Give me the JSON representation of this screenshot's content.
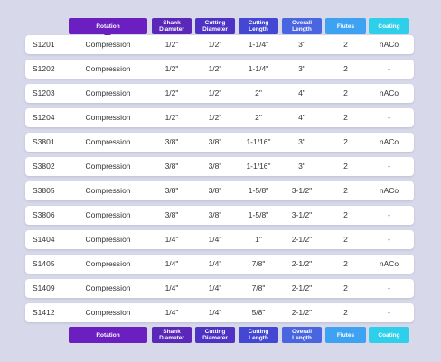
{
  "header": {
    "columns": [
      "Rotation",
      "Shank Diameter",
      "Cutting Diameter",
      "Cutting Length",
      "Overall Length",
      "Flutes",
      "Coating"
    ]
  },
  "table": {
    "rows": [
      [
        "S1201",
        "Compression",
        "1/2\"",
        "1/2\"",
        "1-1/4\"",
        "3\"",
        "2",
        "nACo"
      ],
      [
        "S1202",
        "Compression",
        "1/2\"",
        "1/2\"",
        "1-1/4\"",
        "3\"",
        "2",
        "-"
      ],
      [
        "S1203",
        "Compression",
        "1/2\"",
        "1/2\"",
        "2\"",
        "4\"",
        "2",
        "nACo"
      ],
      [
        "S1204",
        "Compression",
        "1/2\"",
        "1/2\"",
        "2\"",
        "4\"",
        "2",
        "-"
      ],
      [
        "S3801",
        "Compression",
        "3/8\"",
        "3/8\"",
        "1-1/16\"",
        "3\"",
        "2",
        "nACo"
      ],
      [
        "S3802",
        "Compression",
        "3/8\"",
        "3/8\"",
        "1-1/16\"",
        "3\"",
        "2",
        "-"
      ],
      [
        "S3805",
        "Compression",
        "3/8\"",
        "3/8\"",
        "1-5/8\"",
        "3-1/2\"",
        "2",
        "nACo"
      ],
      [
        "S3806",
        "Compression",
        "3/8\"",
        "3/8\"",
        "1-5/8\"",
        "3-1/2\"",
        "2",
        "-"
      ],
      [
        "S1404",
        "Compression",
        "1/4\"",
        "1/4\"",
        "1\"",
        "2-1/2\"",
        "2",
        "-"
      ],
      [
        "S1405",
        "Compression",
        "1/4\"",
        "1/4\"",
        "7/8\"",
        "2-1/2\"",
        "2",
        "nACo"
      ],
      [
        "S1409",
        "Compression",
        "1/4\"",
        "1/4\"",
        "7/8\"",
        "2-1/2\"",
        "2",
        "-"
      ],
      [
        "S1412",
        "Compression",
        "1/4\"",
        "1/4\"",
        "5/8\"",
        "2-1/2\"",
        "2",
        "-"
      ]
    ]
  }
}
